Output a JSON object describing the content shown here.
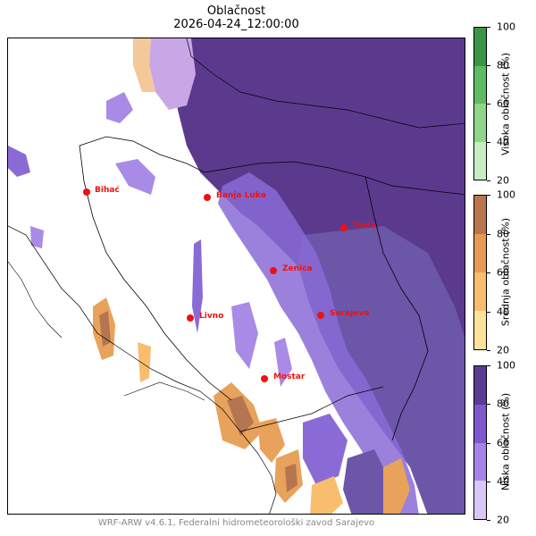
{
  "title": "Oblačnost",
  "datetime": "2026-04-24_12:00:00",
  "footer": "WRF-ARW v4.6.1, Federalni hidrometeorološki zavod Sarajevo",
  "cities": [
    {
      "name": "Bihać"
    },
    {
      "name": "Banja Luka"
    },
    {
      "name": "Tuzla"
    },
    {
      "name": "Zenica"
    },
    {
      "name": "Sarajevo"
    },
    {
      "name": "Livno"
    },
    {
      "name": "Mostar"
    }
  ],
  "colorbars": [
    {
      "label": "Visoka oblačnost (%)",
      "ticks": [
        "20",
        "40",
        "60",
        "80",
        "100"
      ],
      "colors": [
        "#c7eec3",
        "#8fd58a",
        "#5fbb63",
        "#3c9446"
      ]
    },
    {
      "label": "Srednja oblačnost (%)",
      "ticks": [
        "20",
        "40",
        "60",
        "80",
        "100"
      ],
      "colors": [
        "#fde39a",
        "#f8bd6d",
        "#e79a55",
        "#b9754d"
      ]
    },
    {
      "label": "Niska oblačnost (%)",
      "ticks": [
        "20",
        "40",
        "60",
        "80",
        "100"
      ],
      "colors": [
        "#d9c8f5",
        "#a683e8",
        "#7f58cf",
        "#5a3d92"
      ]
    }
  ],
  "colors": {
    "low_dark": "#5b3a8e",
    "low_mid": "#6a54a6",
    "low_light": "#a98ae6",
    "mid_orange": "#e8a25c",
    "mid_brown": "#b37650",
    "city": "#ee1111"
  }
}
